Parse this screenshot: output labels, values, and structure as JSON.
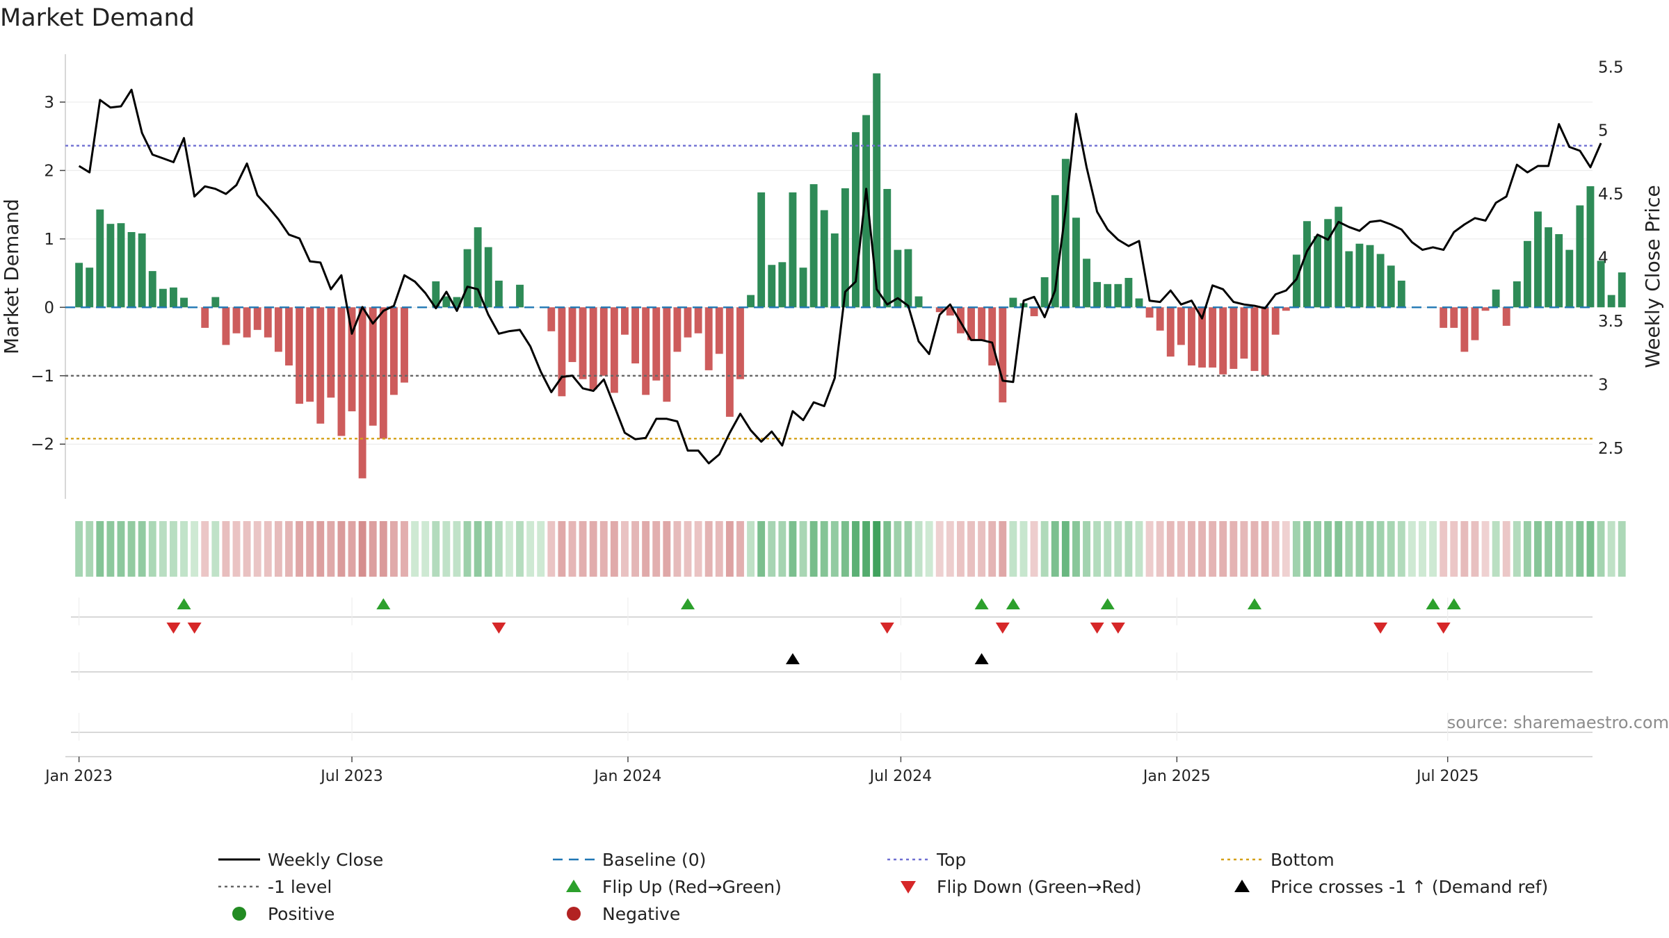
{
  "chart_data": {
    "type": "bar",
    "title": "Market Demand",
    "ylabel_left": "Market Demand",
    "ylabel_right": "Weekly Close Price",
    "ylim_left": [
      -2.8,
      3.7
    ],
    "ylim_right": [
      2.1,
      5.6
    ],
    "yticks_left": [
      {
        "value": 3,
        "label": "3"
      },
      {
        "value": 2,
        "label": "2"
      },
      {
        "value": 1,
        "label": "1"
      },
      {
        "value": 0,
        "label": "0"
      },
      {
        "value": -1,
        "label": "−1"
      },
      {
        "value": -2,
        "label": "−2"
      }
    ],
    "yticks_right": [
      {
        "value": 5.5,
        "label": "5.5"
      },
      {
        "value": 5.0,
        "label": "5"
      },
      {
        "value": 4.5,
        "label": "4.5"
      },
      {
        "value": 4.0,
        "label": "4"
      },
      {
        "value": 3.5,
        "label": "3.5"
      },
      {
        "value": 3.0,
        "label": "3"
      },
      {
        "value": 2.5,
        "label": "2.5"
      }
    ],
    "x_axis": {
      "start_week_offset": -1.3,
      "end_week_offset": 144.2,
      "ticks": [
        {
          "week": 0,
          "label": "Jan 2023"
        },
        {
          "week": 26,
          "label": "Jul 2023"
        },
        {
          "week": 52.3,
          "label": "Jan 2024"
        },
        {
          "week": 78.3,
          "label": "Jul 2024"
        },
        {
          "week": 104.6,
          "label": "Jan 2025"
        },
        {
          "week": 130.4,
          "label": "Jul 2025"
        }
      ]
    },
    "reference_lines": [
      {
        "name": "Top",
        "axis": "right",
        "value": 4.88,
        "color": "#6f6fd2"
      },
      {
        "name": "-1 level",
        "axis": "left",
        "value": -1,
        "color": "#666666"
      },
      {
        "name": "Bottom",
        "axis": "left",
        "value": -1.92,
        "color": "#d4a017"
      },
      {
        "name": "Baseline (0)",
        "axis": "left",
        "value": 0,
        "color": "#1f77b4"
      }
    ],
    "series": [
      {
        "name": "Market Demand",
        "type": "bar",
        "positive_color": "#2e8b57",
        "negative_color": "#cd5c5c",
        "values": [
          0.65,
          0.58,
          1.43,
          1.22,
          1.23,
          1.1,
          1.08,
          0.53,
          0.27,
          0.29,
          0.14,
          0.0,
          -0.3,
          0.15,
          -0.55,
          -0.38,
          -0.44,
          -0.33,
          -0.44,
          -0.65,
          -0.85,
          -1.41,
          -1.38,
          -1.7,
          -1.32,
          -1.88,
          -1.52,
          -2.5,
          -1.73,
          -1.92,
          -1.28,
          -1.1,
          0.0,
          0.0,
          0.38,
          0.16,
          0.15,
          0.85,
          1.17,
          0.88,
          0.39,
          0.0,
          0.33,
          0.0,
          0.0,
          -0.35,
          -1.3,
          -0.8,
          -1.05,
          -1.2,
          -1.0,
          -1.25,
          -0.4,
          -0.82,
          -1.28,
          -1.07,
          -1.38,
          -0.65,
          -0.44,
          -0.38,
          -0.92,
          -0.68,
          -1.6,
          -1.05,
          0.18,
          1.68,
          0.62,
          0.66,
          1.68,
          0.58,
          1.8,
          1.42,
          1.08,
          1.74,
          2.56,
          2.81,
          3.42,
          1.73,
          0.84,
          0.85,
          0.16,
          0.0,
          -0.07,
          -0.12,
          -0.38,
          -0.48,
          -0.48,
          -0.85,
          -1.39,
          0.14,
          0.06,
          -0.13,
          0.44,
          1.64,
          2.17,
          1.31,
          0.71,
          0.37,
          0.34,
          0.34,
          0.43,
          0.13,
          -0.15,
          -0.34,
          -0.72,
          -0.55,
          -0.85,
          -0.88,
          -0.88,
          -0.98,
          -0.9,
          -0.75,
          -0.93,
          -1.0,
          -0.4,
          -0.05,
          0.77,
          1.26,
          1.04,
          1.29,
          1.47,
          0.82,
          0.93,
          0.91,
          0.78,
          0.61,
          0.39,
          0.0,
          0.0,
          0.0,
          -0.3,
          -0.3,
          -0.65,
          -0.48,
          -0.05,
          0.26,
          -0.27,
          0.38,
          0.97,
          1.4,
          1.17,
          1.07,
          0.84,
          1.49,
          1.77,
          0.68,
          0.18,
          0.51
        ]
      },
      {
        "name": "Weekly Close",
        "type": "line",
        "axis": "right",
        "color": "#000000",
        "values": [
          4.72,
          4.67,
          5.24,
          5.18,
          5.19,
          5.32,
          4.98,
          4.81,
          4.78,
          4.75,
          4.94,
          4.48,
          4.56,
          4.54,
          4.5,
          4.57,
          4.74,
          4.49,
          4.4,
          4.3,
          4.18,
          4.15,
          3.97,
          3.96,
          3.75,
          3.86,
          3.4,
          3.61,
          3.48,
          3.58,
          3.62,
          3.86,
          3.81,
          3.72,
          3.6,
          3.73,
          3.58,
          3.77,
          3.75,
          3.55,
          3.4,
          3.42,
          3.43,
          3.3,
          3.1,
          2.94,
          3.06,
          3.07,
          2.97,
          2.95,
          3.04,
          2.83,
          2.62,
          2.57,
          2.58,
          2.73,
          2.73,
          2.71,
          2.48,
          2.48,
          2.38,
          2.45,
          2.62,
          2.77,
          2.64,
          2.55,
          2.63,
          2.52,
          2.79,
          2.72,
          2.86,
          2.83,
          3.05,
          3.73,
          3.81,
          4.54,
          3.75,
          3.63,
          3.68,
          3.62,
          3.34,
          3.24,
          3.55,
          3.63,
          3.49,
          3.35,
          3.35,
          3.33,
          3.03,
          3.02,
          3.66,
          3.69,
          3.53,
          3.74,
          4.37,
          5.13,
          4.71,
          4.36,
          4.22,
          4.14,
          4.09,
          4.13,
          3.66,
          3.65,
          3.74,
          3.63,
          3.66,
          3.52,
          3.78,
          3.75,
          3.65,
          3.63,
          3.62,
          3.6,
          3.71,
          3.74,
          3.83,
          4.05,
          4.18,
          4.14,
          4.28,
          4.24,
          4.21,
          4.28,
          4.29,
          4.26,
          4.22,
          4.12,
          4.06,
          4.08,
          4.06,
          4.2,
          4.26,
          4.31,
          4.29,
          4.43,
          4.48,
          4.73,
          4.67,
          4.72,
          4.72,
          5.05,
          4.87,
          4.84,
          4.71,
          4.9
        ]
      }
    ],
    "heat_strip": {
      "description_source": "same as Market Demand values"
    },
    "markers": {
      "flip_up_weeks": [
        10,
        29,
        58,
        86,
        89,
        98,
        112,
        129,
        131
      ],
      "flip_down_weeks": [
        9,
        11,
        40,
        77,
        88,
        97,
        99,
        124,
        130
      ],
      "price_cross_weeks": [
        68,
        86
      ]
    },
    "legend": {
      "position": "bottom",
      "items": [
        {
          "label": "Weekly Close",
          "symbol": "line",
          "color": "#000000"
        },
        {
          "label": "Baseline (0)",
          "symbol": "dash",
          "color": "#1f77b4"
        },
        {
          "label": "Top",
          "symbol": "dot",
          "color": "#6f6fd2"
        },
        {
          "label": "Bottom",
          "symbol": "dot",
          "color": "#d4a017"
        },
        {
          "label": "-1 level",
          "symbol": "dot",
          "color": "#666666"
        },
        {
          "label": "Flip Up (Red→Green)",
          "symbol": "triangle-up",
          "color": "#2ca02c"
        },
        {
          "label": "Flip Down (Green→Red)",
          "symbol": "triangle-down",
          "color": "#d62728"
        },
        {
          "label": "Price crosses -1 ↑ (Demand ref)",
          "symbol": "triangle-up",
          "color": "#000000"
        },
        {
          "label": "Positive",
          "symbol": "circle",
          "color": "#228b22"
        },
        {
          "label": "Negative",
          "symbol": "circle",
          "color": "#b22222"
        }
      ]
    },
    "source": "source: sharemaestro.com"
  }
}
